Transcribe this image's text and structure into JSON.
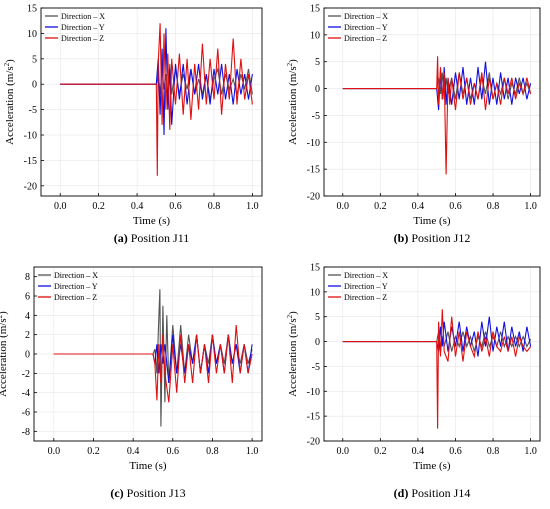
{
  "chart_data": [
    {
      "type": "line",
      "caption_letter": "(a)",
      "caption_text": " Position J11",
      "xlabel": "Time (s)",
      "ylabel_main": "Acceleration (m/s",
      "ylabel_sup": "2",
      "ylabel_end": ")",
      "xlim": [
        -0.1,
        1.05
      ],
      "ylim": [
        -22,
        15
      ],
      "xticks": [
        0.0,
        0.2,
        0.4,
        0.6,
        0.8,
        1.0
      ],
      "xtick_labels": [
        "0.0",
        "0.2",
        "0.4",
        "0.6",
        "0.8",
        "1.0"
      ],
      "yticks": [
        -20,
        -15,
        -10,
        -5,
        0,
        5,
        10,
        15
      ],
      "ytick_labels": [
        "-20",
        "-15",
        "-10",
        "-5",
        "0",
        "5",
        "10",
        "15"
      ],
      "legend_position": "top-left",
      "series": [
        {
          "name": "Direction – X",
          "color": "#555555",
          "x": [
            0.0,
            0.48,
            0.5,
            0.51,
            0.52,
            0.53,
            0.54,
            0.55,
            0.56,
            0.57,
            0.58,
            0.6,
            0.62,
            0.64,
            0.66,
            0.68,
            0.7,
            0.72,
            0.74,
            0.76,
            0.78,
            0.8,
            0.82,
            0.84,
            0.86,
            0.88,
            0.9,
            0.92,
            0.94,
            0.96,
            0.98,
            1.0
          ],
          "y": [
            0,
            0,
            0,
            2,
            -2,
            3,
            -1,
            2,
            -3,
            4,
            -2,
            3,
            -2,
            2,
            -1,
            3,
            -2,
            1,
            -2,
            2,
            -3,
            1,
            3,
            -2,
            2,
            -1,
            1,
            -2,
            2,
            -1,
            3,
            -2
          ]
        },
        {
          "name": "Direction – Y",
          "color": "#1010e0",
          "x": [
            0.0,
            0.48,
            0.5,
            0.51,
            0.52,
            0.53,
            0.54,
            0.55,
            0.56,
            0.57,
            0.58,
            0.6,
            0.62,
            0.64,
            0.66,
            0.68,
            0.7,
            0.72,
            0.74,
            0.76,
            0.78,
            0.8,
            0.82,
            0.84,
            0.86,
            0.88,
            0.9,
            0.92,
            0.94,
            0.96,
            0.98,
            1.0
          ],
          "y": [
            0,
            0,
            0,
            5,
            -6,
            7,
            -10,
            11,
            -5,
            3,
            -8,
            4,
            -3,
            4,
            -4,
            3,
            -2,
            4,
            -3,
            2,
            -4,
            3,
            -2,
            4,
            -3,
            2,
            -4,
            3,
            -2,
            2,
            -3,
            2
          ]
        },
        {
          "name": "Direction – Z",
          "color": "#e01010",
          "x": [
            0.0,
            0.48,
            0.5,
            0.505,
            0.51,
            0.52,
            0.53,
            0.54,
            0.55,
            0.56,
            0.57,
            0.58,
            0.6,
            0.62,
            0.64,
            0.66,
            0.68,
            0.7,
            0.72,
            0.74,
            0.76,
            0.78,
            0.8,
            0.82,
            0.84,
            0.86,
            0.88,
            0.9,
            0.92,
            0.94,
            0.96,
            0.98,
            1.0
          ],
          "y": [
            0,
            0,
            0,
            -18,
            4,
            12,
            -8,
            10,
            -5,
            6,
            -9,
            5,
            -4,
            6,
            -6,
            5,
            -7,
            4,
            -5,
            8,
            -4,
            5,
            -3,
            7,
            -6,
            4,
            -3,
            9,
            -4,
            5,
            -3,
            2,
            -4
          ]
        }
      ]
    },
    {
      "type": "line",
      "caption_letter": "(b)",
      "caption_text": " Position J12",
      "xlabel": "Time (s)",
      "ylabel_main": "Acceleration (m/s",
      "ylabel_sup": "2",
      "ylabel_end": ")",
      "xlim": [
        -0.1,
        1.05
      ],
      "ylim": [
        -20,
        15
      ],
      "xticks": [
        0.0,
        0.2,
        0.4,
        0.6,
        0.8,
        1.0
      ],
      "xtick_labels": [
        "0.0",
        "0.2",
        "0.4",
        "0.6",
        "0.8",
        "1.0"
      ],
      "yticks": [
        -20,
        -15,
        -10,
        -5,
        0,
        5,
        10,
        15
      ],
      "ytick_labels": [
        "-20",
        "-15",
        "-10",
        "-5",
        "0",
        "5",
        "10",
        "15"
      ],
      "legend_position": "top-left",
      "series": [
        {
          "name": "Direction – X",
          "color": "#555555",
          "x": [
            0.0,
            0.5,
            0.51,
            0.52,
            0.53,
            0.54,
            0.55,
            0.56,
            0.58,
            0.6,
            0.62,
            0.64,
            0.66,
            0.68,
            0.7,
            0.72,
            0.74,
            0.76,
            0.78,
            0.8,
            0.82,
            0.84,
            0.86,
            0.88,
            0.9,
            0.92,
            0.94,
            0.96,
            0.98,
            1.0
          ],
          "y": [
            0,
            0,
            2,
            -1,
            3,
            -2,
            2,
            -1,
            2,
            -2,
            3,
            -1,
            2,
            -2,
            1,
            -2,
            2,
            -1,
            3,
            -2,
            1,
            -1,
            2,
            -2,
            1,
            -1,
            2,
            -1,
            1,
            -1
          ]
        },
        {
          "name": "Direction – Y",
          "color": "#1010e0",
          "x": [
            0.0,
            0.5,
            0.51,
            0.52,
            0.53,
            0.54,
            0.55,
            0.56,
            0.58,
            0.6,
            0.62,
            0.64,
            0.66,
            0.68,
            0.7,
            0.72,
            0.74,
            0.76,
            0.78,
            0.8,
            0.82,
            0.84,
            0.86,
            0.88,
            0.9,
            0.92,
            0.94,
            0.96,
            0.98,
            1.0
          ],
          "y": [
            0,
            0,
            -4,
            3,
            -2,
            4,
            -3,
            2,
            -3,
            3,
            -2,
            4,
            -3,
            2,
            -3,
            4,
            -2,
            5,
            -3,
            2,
            -3,
            3,
            -2,
            2,
            -3,
            2,
            -1,
            2,
            -2,
            1
          ]
        },
        {
          "name": "Direction – Z",
          "color": "#e01010",
          "x": [
            0.0,
            0.5,
            0.505,
            0.51,
            0.52,
            0.53,
            0.54,
            0.55,
            0.56,
            0.57,
            0.58,
            0.6,
            0.62,
            0.64,
            0.66,
            0.68,
            0.7,
            0.72,
            0.74,
            0.76,
            0.78,
            0.8,
            0.82,
            0.84,
            0.86,
            0.88,
            0.9,
            0.92,
            0.94,
            0.96,
            0.98,
            1.0
          ],
          "y": [
            0,
            0,
            6,
            -3,
            4,
            -2,
            3,
            -16,
            2,
            -3,
            2,
            -4,
            3,
            -2,
            2,
            -3,
            1,
            -2,
            3,
            -4,
            2,
            -2,
            1,
            -3,
            2,
            -1,
            2,
            -2,
            1,
            -1,
            2,
            -1
          ]
        }
      ]
    },
    {
      "type": "line",
      "caption_letter": "(c)",
      "caption_text": " Position J13",
      "xlabel": "Time (s)",
      "ylabel_main": "Acceleration (m/s",
      "ylabel_sup": "2",
      "ylabel_end": ")",
      "xlim": [
        -0.1,
        1.05
      ],
      "ylim": [
        -9,
        9
      ],
      "xticks": [
        0.0,
        0.2,
        0.4,
        0.6,
        0.8,
        1.0
      ],
      "xtick_labels": [
        "0.0",
        "0.2",
        "0.4",
        "0.6",
        "0.8",
        "1.0"
      ],
      "yticks": [
        -8,
        -6,
        -4,
        -2,
        0,
        2,
        4,
        6,
        8
      ],
      "ytick_labels": [
        "-8",
        "-6",
        "-4",
        "-2",
        "0",
        "2",
        "4",
        "6",
        "8"
      ],
      "legend_position": "top-left",
      "series": [
        {
          "name": "Direction – X",
          "color": "#555555",
          "x": [
            0.0,
            0.5,
            0.51,
            0.52,
            0.53,
            0.535,
            0.54,
            0.55,
            0.56,
            0.57,
            0.58,
            0.6,
            0.62,
            0.64,
            0.66,
            0.68,
            0.7,
            0.72,
            0.74,
            0.76,
            0.78,
            0.8,
            0.82,
            0.84,
            0.86,
            0.88,
            0.9,
            0.92,
            0.94,
            0.96,
            0.98,
            1.0
          ],
          "y": [
            0,
            0,
            0.5,
            -2,
            4,
            6.7,
            -7.5,
            5,
            -5,
            4,
            -3,
            3,
            -2,
            3,
            -2,
            2,
            -1,
            2,
            -2,
            1,
            -1,
            2,
            -1,
            1,
            -1,
            2,
            -1,
            1,
            -1,
            1,
            -1,
            0.5
          ]
        },
        {
          "name": "Direction – Y",
          "color": "#1010e0",
          "x": [
            0.0,
            0.5,
            0.51,
            0.52,
            0.53,
            0.54,
            0.55,
            0.56,
            0.58,
            0.6,
            0.62,
            0.64,
            0.66,
            0.68,
            0.7,
            0.72,
            0.74,
            0.76,
            0.78,
            0.8,
            0.82,
            0.84,
            0.86,
            0.88,
            0.9,
            0.92,
            0.94,
            0.96,
            0.98,
            1.0
          ],
          "y": [
            0,
            0,
            -1,
            1,
            -2,
            1,
            -1,
            1,
            -3,
            2,
            -2,
            1,
            -2,
            1,
            -1,
            2,
            -2,
            1,
            -2,
            2,
            -1,
            1,
            -2,
            2,
            -1,
            1,
            -2,
            1,
            -2,
            1
          ]
        },
        {
          "name": "Direction – Z",
          "color": "#e01010",
          "x": [
            0.0,
            0.5,
            0.51,
            0.52,
            0.53,
            0.54,
            0.55,
            0.56,
            0.58,
            0.6,
            0.62,
            0.64,
            0.66,
            0.68,
            0.7,
            0.72,
            0.74,
            0.76,
            0.78,
            0.8,
            0.82,
            0.84,
            0.86,
            0.88,
            0.9,
            0.92,
            0.94,
            0.96,
            0.98,
            1.0
          ],
          "y": [
            0,
            0,
            -1,
            -4.8,
            1,
            -3,
            2,
            -2,
            -5,
            1,
            -4,
            2,
            -3,
            1,
            -3,
            2,
            -2,
            1,
            -3,
            2,
            -2,
            1,
            -2,
            2,
            -3,
            3,
            -2,
            1,
            -2,
            0
          ]
        }
      ]
    },
    {
      "type": "line",
      "caption_letter": "(d)",
      "caption_text": " Position J14",
      "xlabel": "Time (s)",
      "ylabel_main": "Acceleration (m/s",
      "ylabel_sup": "2",
      "ylabel_end": ")",
      "xlim": [
        -0.1,
        1.05
      ],
      "ylim": [
        -20,
        15
      ],
      "xticks": [
        0.0,
        0.2,
        0.4,
        0.6,
        0.8,
        1.0
      ],
      "xtick_labels": [
        "0.0",
        "0.2",
        "0.4",
        "0.6",
        "0.8",
        "1.0"
      ],
      "yticks": [
        -20,
        -15,
        -10,
        -5,
        0,
        5,
        10,
        15
      ],
      "ytick_labels": [
        "-20",
        "-15",
        "-10",
        "-5",
        "0",
        "5",
        "10",
        "15"
      ],
      "legend_position": "top-left",
      "series": [
        {
          "name": "Direction – X",
          "color": "#555555",
          "x": [
            0.0,
            0.5,
            0.51,
            0.52,
            0.53,
            0.54,
            0.56,
            0.58,
            0.6,
            0.62,
            0.64,
            0.66,
            0.68,
            0.7,
            0.72,
            0.74,
            0.76,
            0.78,
            0.8,
            0.82,
            0.84,
            0.86,
            0.88,
            0.9,
            0.92,
            0.94,
            0.96,
            0.98,
            1.0
          ],
          "y": [
            0,
            0,
            2,
            -2,
            1,
            -1,
            2,
            -2,
            1,
            -1,
            2,
            -1,
            1,
            -2,
            1,
            -1,
            2,
            -1,
            1,
            -1,
            2,
            -1,
            1,
            -1,
            1,
            -1,
            1,
            -1,
            0.5
          ]
        },
        {
          "name": "Direction – Y",
          "color": "#1010e0",
          "x": [
            0.0,
            0.5,
            0.51,
            0.52,
            0.53,
            0.54,
            0.56,
            0.58,
            0.6,
            0.62,
            0.64,
            0.66,
            0.68,
            0.7,
            0.72,
            0.74,
            0.76,
            0.78,
            0.8,
            0.82,
            0.84,
            0.86,
            0.88,
            0.9,
            0.92,
            0.94,
            0.96,
            0.98,
            1.0
          ],
          "y": [
            0,
            0,
            -2,
            3,
            -1,
            4,
            -2,
            3,
            -1,
            4,
            -2,
            3,
            -1,
            2,
            -3,
            4,
            -1,
            5,
            -2,
            3,
            -1,
            4,
            -2,
            3,
            -1,
            2,
            -2,
            3,
            -1
          ]
        },
        {
          "name": "Direction – Z",
          "color": "#e01010",
          "x": [
            0.0,
            0.5,
            0.505,
            0.51,
            0.52,
            0.53,
            0.54,
            0.56,
            0.58,
            0.6,
            0.62,
            0.64,
            0.66,
            0.68,
            0.7,
            0.72,
            0.74,
            0.76,
            0.78,
            0.8,
            0.82,
            0.84,
            0.86,
            0.88,
            0.9,
            0.92,
            0.94,
            0.96,
            0.98,
            1.0
          ],
          "y": [
            0,
            0,
            -17.5,
            4,
            -3,
            6.5,
            -2,
            -4,
            5,
            -3,
            2,
            -4,
            2,
            -1,
            -3,
            2,
            -2,
            1,
            -3,
            2,
            -1,
            -2,
            1,
            -2,
            1,
            -3,
            1,
            -1,
            -2,
            -1
          ]
        }
      ]
    }
  ]
}
